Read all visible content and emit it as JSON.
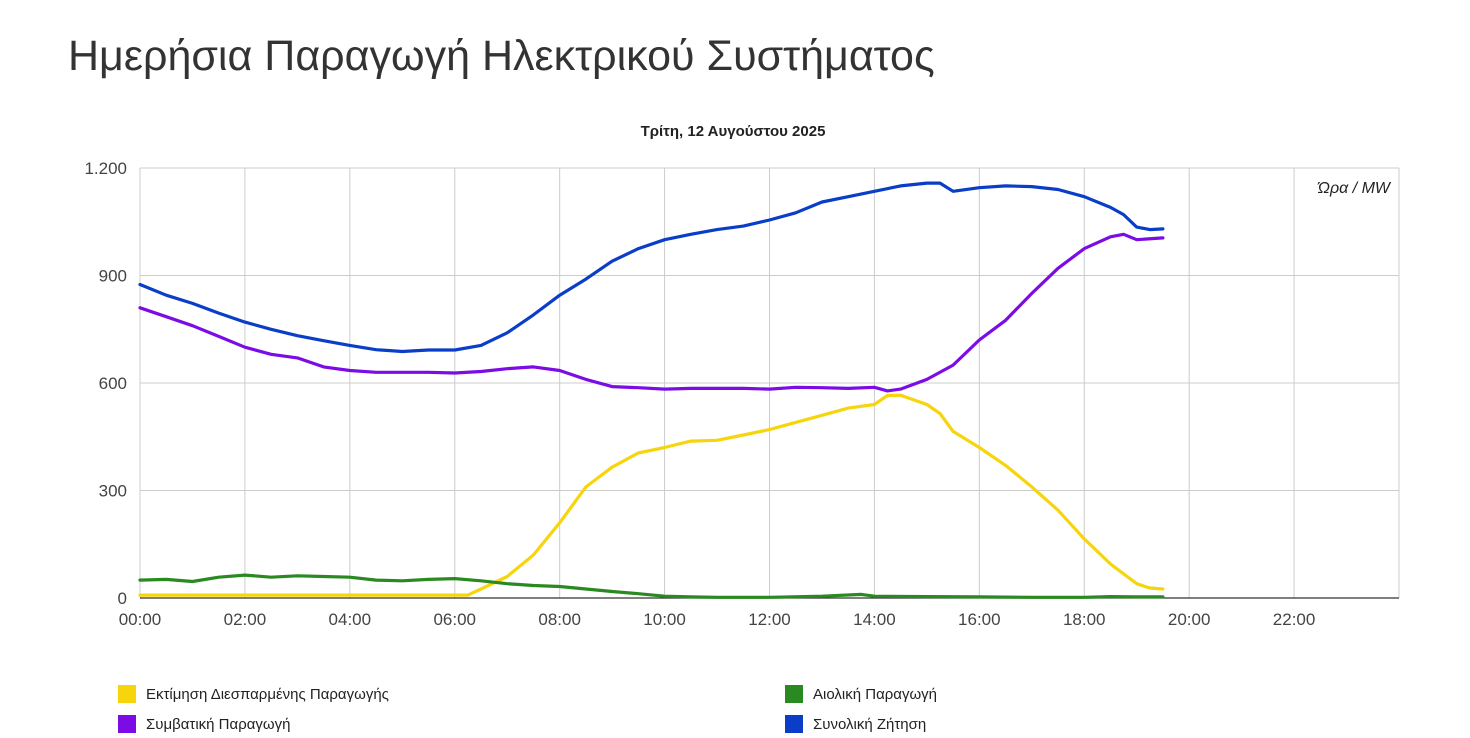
{
  "page": {
    "title": "Ημερήσια Παραγωγή Ηλεκτρικού Συστήματος"
  },
  "chart_data": {
    "type": "line",
    "title": "Τρίτη, 12 Αυγούστου 2025",
    "unit_label": "Ώρα / MW",
    "xlabel": "",
    "ylabel": "",
    "x_unit": "hours",
    "xlim": [
      0,
      24
    ],
    "ylim": [
      0,
      1200
    ],
    "x_ticks": [
      0,
      2,
      4,
      6,
      8,
      10,
      12,
      14,
      16,
      18,
      20,
      22
    ],
    "x_tick_labels": [
      "00:00",
      "02:00",
      "04:00",
      "06:00",
      "08:00",
      "10:00",
      "12:00",
      "14:00",
      "16:00",
      "18:00",
      "20:00",
      "22:00"
    ],
    "y_ticks": [
      0,
      300,
      600,
      900,
      1200
    ],
    "y_tick_labels": [
      "0",
      "300",
      "600",
      "900",
      "1.200"
    ],
    "grid": true,
    "legend_position": "bottom",
    "series": [
      {
        "name": "Εκτίμηση Διεσπαρμένης Παραγωγής",
        "color": "#f7d50c",
        "points": [
          [
            0,
            8
          ],
          [
            1,
            8
          ],
          [
            2,
            8
          ],
          [
            3,
            8
          ],
          [
            4,
            8
          ],
          [
            5,
            8
          ],
          [
            6,
            8
          ],
          [
            6.25,
            8
          ],
          [
            6.5,
            25
          ],
          [
            7,
            60
          ],
          [
            7.5,
            120
          ],
          [
            8,
            210
          ],
          [
            8.5,
            310
          ],
          [
            9,
            365
          ],
          [
            9.5,
            405
          ],
          [
            10,
            420
          ],
          [
            10.5,
            438
          ],
          [
            11,
            440
          ],
          [
            11.5,
            455
          ],
          [
            12,
            470
          ],
          [
            12.5,
            490
          ],
          [
            13,
            510
          ],
          [
            13.5,
            530
          ],
          [
            14,
            540
          ],
          [
            14.25,
            565
          ],
          [
            14.5,
            566
          ],
          [
            15,
            540
          ],
          [
            15.25,
            515
          ],
          [
            15.5,
            465
          ],
          [
            16,
            420
          ],
          [
            16.5,
            370
          ],
          [
            17,
            310
          ],
          [
            17.5,
            245
          ],
          [
            18,
            165
          ],
          [
            18.5,
            95
          ],
          [
            19,
            40
          ],
          [
            19.25,
            28
          ],
          [
            19.5,
            25
          ]
        ]
      },
      {
        "name": "Αιολική Παραγωγή",
        "color": "#2a8a21",
        "points": [
          [
            0,
            50
          ],
          [
            0.5,
            52
          ],
          [
            1,
            46
          ],
          [
            1.5,
            58
          ],
          [
            2,
            64
          ],
          [
            2.5,
            58
          ],
          [
            3,
            62
          ],
          [
            3.5,
            60
          ],
          [
            4,
            58
          ],
          [
            4.5,
            50
          ],
          [
            5,
            48
          ],
          [
            5.5,
            52
          ],
          [
            6,
            54
          ],
          [
            6.5,
            48
          ],
          [
            7,
            40
          ],
          [
            7.5,
            35
          ],
          [
            8,
            32
          ],
          [
            8.5,
            25
          ],
          [
            9,
            18
          ],
          [
            9.5,
            12
          ],
          [
            10,
            5
          ],
          [
            10.5,
            3
          ],
          [
            11,
            2
          ],
          [
            12,
            2
          ],
          [
            13,
            5
          ],
          [
            13.75,
            10
          ],
          [
            14,
            5
          ],
          [
            15,
            4
          ],
          [
            16,
            3
          ],
          [
            17,
            2
          ],
          [
            18,
            2
          ],
          [
            18.5,
            4
          ],
          [
            19,
            3
          ],
          [
            19.5,
            3
          ]
        ]
      },
      {
        "name": "Συμβατική Παραγωγή",
        "color": "#7b0ce6",
        "points": [
          [
            0,
            810
          ],
          [
            0.5,
            785
          ],
          [
            1,
            760
          ],
          [
            1.5,
            730
          ],
          [
            2,
            700
          ],
          [
            2.5,
            680
          ],
          [
            3,
            670
          ],
          [
            3.5,
            645
          ],
          [
            4,
            635
          ],
          [
            4.5,
            630
          ],
          [
            5,
            630
          ],
          [
            5.5,
            630
          ],
          [
            6,
            628
          ],
          [
            6.5,
            632
          ],
          [
            7,
            640
          ],
          [
            7.5,
            645
          ],
          [
            8,
            635
          ],
          [
            8.5,
            610
          ],
          [
            9,
            590
          ],
          [
            9.5,
            587
          ],
          [
            10,
            583
          ],
          [
            10.5,
            585
          ],
          [
            11,
            585
          ],
          [
            11.5,
            585
          ],
          [
            12,
            583
          ],
          [
            12.5,
            588
          ],
          [
            13,
            587
          ],
          [
            13.5,
            585
          ],
          [
            14,
            588
          ],
          [
            14.25,
            578
          ],
          [
            14.5,
            583
          ],
          [
            15,
            610
          ],
          [
            15.5,
            650
          ],
          [
            16,
            720
          ],
          [
            16.5,
            775
          ],
          [
            17,
            850
          ],
          [
            17.5,
            920
          ],
          [
            18,
            975
          ],
          [
            18.5,
            1008
          ],
          [
            18.75,
            1015
          ],
          [
            19,
            1000
          ],
          [
            19.5,
            1005
          ]
        ]
      },
      {
        "name": "Συνολική Ζήτηση",
        "color": "#0a3ec8",
        "points": [
          [
            0,
            875
          ],
          [
            0.5,
            845
          ],
          [
            1,
            822
          ],
          [
            1.5,
            795
          ],
          [
            2,
            770
          ],
          [
            2.5,
            750
          ],
          [
            3,
            732
          ],
          [
            3.5,
            718
          ],
          [
            4,
            705
          ],
          [
            4.5,
            693
          ],
          [
            5,
            688
          ],
          [
            5.5,
            692
          ],
          [
            6,
            692
          ],
          [
            6.5,
            705
          ],
          [
            7,
            740
          ],
          [
            7.5,
            790
          ],
          [
            8,
            845
          ],
          [
            8.5,
            890
          ],
          [
            9,
            940
          ],
          [
            9.5,
            975
          ],
          [
            10,
            1000
          ],
          [
            10.5,
            1015
          ],
          [
            11,
            1028
          ],
          [
            11.5,
            1038
          ],
          [
            12,
            1055
          ],
          [
            12.5,
            1075
          ],
          [
            13,
            1105
          ],
          [
            13.5,
            1120
          ],
          [
            14,
            1135
          ],
          [
            14.5,
            1150
          ],
          [
            15,
            1158
          ],
          [
            15.25,
            1158
          ],
          [
            15.5,
            1135
          ],
          [
            16,
            1145
          ],
          [
            16.5,
            1150
          ],
          [
            17,
            1148
          ],
          [
            17.5,
            1140
          ],
          [
            18,
            1120
          ],
          [
            18.5,
            1090
          ],
          [
            18.75,
            1070
          ],
          [
            19,
            1035
          ],
          [
            19.25,
            1028
          ],
          [
            19.5,
            1030
          ]
        ]
      }
    ]
  },
  "legend": {
    "items": [
      {
        "label": "Εκτίμηση Διεσπαρμένης Παραγωγής",
        "color": "#f7d50c"
      },
      {
        "label": "Αιολική Παραγωγή",
        "color": "#2a8a21"
      },
      {
        "label": "Συμβατική Παραγωγή",
        "color": "#7b0ce6"
      },
      {
        "label": "Συνολική Ζήτηση",
        "color": "#0a3ec8"
      }
    ]
  }
}
